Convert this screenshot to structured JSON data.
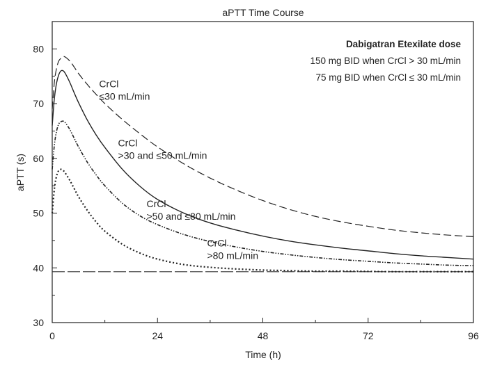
{
  "chart_data": {
    "type": "line",
    "title": "aPTT Time Course",
    "xlabel": "Time (h)",
    "ylabel": "aPTT (s)",
    "xlim": [
      0,
      96
    ],
    "ylim": [
      30,
      85
    ],
    "xticks": [
      0,
      24,
      48,
      72,
      96
    ],
    "yticks": [
      30,
      40,
      50,
      60,
      70,
      80
    ],
    "grid": false,
    "baseline": {
      "y": 39.3,
      "style": "long-dash"
    },
    "legend": {
      "title": "Dabigatran Etexilate dose",
      "lines": [
        "150 mg BID when CrCl > 30 mL/min",
        "75 mg BID when CrCl ≤ 30 mL/min"
      ],
      "position": "top-right"
    },
    "series": [
      {
        "name": "CrCl ≤30 mL/min",
        "label_lines": [
          "CrCl",
          "≤30 mL/min"
        ],
        "style": "dashed",
        "x": [
          0,
          0.5,
          1,
          1.5,
          2,
          2.5,
          3,
          4,
          5,
          6,
          8,
          10,
          12,
          16,
          20,
          24,
          30,
          36,
          42,
          48,
          54,
          60,
          66,
          72,
          78,
          84,
          90,
          96
        ],
        "y": [
          69.0,
          74.0,
          76.5,
          77.8,
          78.3,
          78.6,
          78.5,
          77.8,
          76.7,
          75.5,
          73.5,
          71.7,
          70.0,
          67.1,
          64.5,
          62.1,
          59.0,
          56.4,
          54.2,
          52.3,
          50.7,
          49.4,
          48.4,
          47.6,
          46.9,
          46.4,
          46.0,
          45.7
        ]
      },
      {
        "name": "CrCl >30 and ≤50 mL/min",
        "label_lines": [
          "CrCl",
          ">30 and ≤50 mL/min"
        ],
        "style": "solid",
        "x": [
          0,
          0.5,
          1,
          1.5,
          2,
          2.5,
          3,
          4,
          5,
          6,
          8,
          10,
          12,
          16,
          20,
          24,
          30,
          36,
          42,
          48,
          54,
          60,
          66,
          72,
          78,
          84,
          90,
          96
        ],
        "y": [
          66.0,
          71.0,
          73.8,
          75.3,
          76.0,
          76.0,
          75.5,
          73.9,
          72.0,
          70.2,
          67.0,
          64.3,
          62.0,
          58.0,
          54.9,
          52.5,
          50.0,
          48.2,
          46.9,
          45.8,
          44.9,
          44.2,
          43.6,
          43.1,
          42.6,
          42.2,
          41.9,
          41.6
        ]
      },
      {
        "name": "CrCl >50 and ≤80 mL/min",
        "label_lines": [
          "CrCl",
          ">50 and ≤80 mL/min"
        ],
        "style": "dash-dot-dot",
        "x": [
          0,
          0.5,
          1,
          1.5,
          2,
          2.5,
          3,
          4,
          5,
          6,
          8,
          10,
          12,
          16,
          20,
          24,
          30,
          36,
          42,
          48,
          54,
          60,
          66,
          72,
          78,
          84,
          90,
          96
        ],
        "y": [
          58.0,
          62.5,
          65.0,
          66.3,
          66.7,
          66.8,
          66.5,
          65.3,
          63.7,
          62.1,
          59.3,
          57.0,
          55.0,
          51.8,
          49.5,
          47.9,
          46.1,
          44.8,
          43.8,
          43.0,
          42.4,
          41.9,
          41.5,
          41.2,
          40.9,
          40.7,
          40.5,
          40.4
        ]
      },
      {
        "name": "CrCl >80 mL/min",
        "label_lines": [
          "CrCl",
          ">80 mL/min"
        ],
        "style": "dotted",
        "x": [
          0,
          0.5,
          1,
          1.5,
          2,
          2.5,
          3,
          4,
          5,
          6,
          8,
          10,
          12,
          16,
          20,
          24,
          30,
          36,
          42,
          48,
          54,
          60,
          66,
          72,
          78,
          84,
          90,
          96
        ],
        "y": [
          50.0,
          54.5,
          56.8,
          57.8,
          58.0,
          57.8,
          57.3,
          56.0,
          54.5,
          53.0,
          50.5,
          48.4,
          46.7,
          44.3,
          42.7,
          41.6,
          40.6,
          40.1,
          39.8,
          39.6,
          39.5,
          39.4,
          39.4,
          39.35,
          39.3,
          39.3,
          39.3,
          39.3
        ]
      }
    ],
    "annotations": [
      {
        "series_index": 0,
        "x": 10.7,
        "y": 73.0
      },
      {
        "series_index": 1,
        "x": 15.0,
        "y": 62.2
      },
      {
        "series_index": 2,
        "x": 21.5,
        "y": 51.1
      },
      {
        "series_index": 3,
        "x": 35.3,
        "y": 43.9
      }
    ]
  }
}
